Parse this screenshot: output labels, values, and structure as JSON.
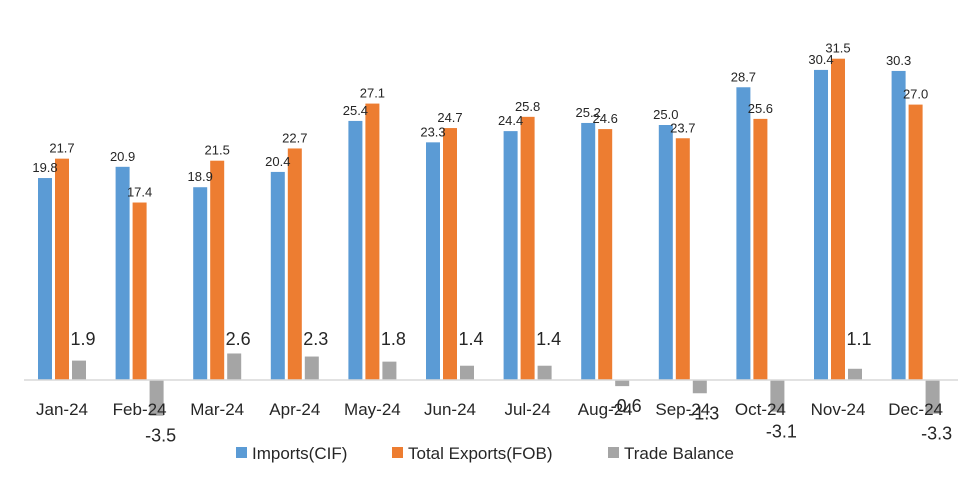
{
  "colors": {
    "imports": "#5B9BD5",
    "exports": "#ED7D31",
    "balance": "#A5A5A5",
    "axis": "#D9D9D9"
  },
  "chart_data": {
    "type": "bar",
    "categories": [
      "Jan-24",
      "Feb-24",
      "Mar-24",
      "Apr-24",
      "May-24",
      "Jun-24",
      "Jul-24",
      "Aug-24",
      "Sep-24",
      "Oct-24",
      "Nov-24",
      "Dec-24"
    ],
    "series": [
      {
        "name": "Imports(CIF)",
        "values": [
          19.8,
          20.9,
          18.9,
          20.4,
          25.4,
          23.3,
          24.4,
          25.2,
          25.0,
          28.7,
          30.4,
          30.3
        ]
      },
      {
        "name": "Total Exports(FOB)",
        "values": [
          21.7,
          17.4,
          21.5,
          22.7,
          27.1,
          24.7,
          25.8,
          24.6,
          23.7,
          25.6,
          31.5,
          27.0
        ]
      },
      {
        "name": "Trade Balance",
        "values": [
          1.9,
          -3.5,
          2.6,
          2.3,
          1.8,
          1.4,
          1.4,
          -0.6,
          -1.3,
          -3.1,
          1.1,
          -3.3
        ]
      }
    ],
    "data_labels": {
      "imports": [
        "19.8",
        "20.9",
        "18.9",
        "20.4",
        "25.4",
        "23.3",
        "24.4",
        "25.2",
        "25.0",
        "28.7",
        "30.4",
        "30.3"
      ],
      "exports": [
        "21.7",
        "17.4",
        "21.5",
        "22.7",
        "27.1",
        "24.7",
        "25.8",
        "24.6",
        "23.7",
        "25.6",
        "31.5",
        "27.0"
      ],
      "balance": [
        "1.9",
        "-3.5",
        "2.6",
        "2.3",
        "1.8",
        "1.4",
        "1.4",
        "-0.6",
        "-1.3",
        "-3.1",
        "1.1",
        "-3.3"
      ]
    },
    "ylim": [
      -6,
      34
    ],
    "grid": false,
    "legend": "bottom",
    "title": "",
    "xlabel": "",
    "ylabel": ""
  }
}
